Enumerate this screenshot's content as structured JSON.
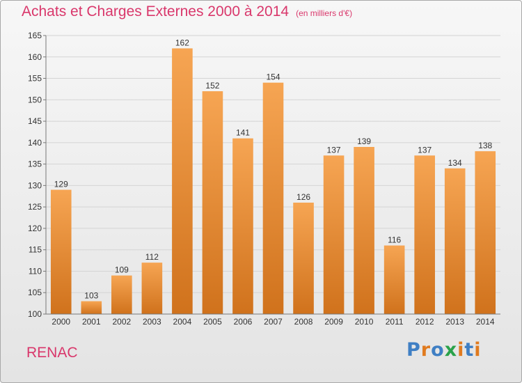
{
  "header": {
    "title": "Achats et Charges Externes 2000 à 2014",
    "unit": "(en milliers d'€)"
  },
  "footer": {
    "commune": "RENAC",
    "logo_text": "Proxiti",
    "logo_colors": [
      "#3f7fc4",
      "#e07b20",
      "#3f7fc4",
      "#2aa24a",
      "#e07b20",
      "#3f7fc4",
      "#e07b20"
    ]
  },
  "chart_data": {
    "type": "bar",
    "categories": [
      "2000",
      "2001",
      "2002",
      "2003",
      "2004",
      "2005",
      "2006",
      "2007",
      "2008",
      "2009",
      "2010",
      "2011",
      "2012",
      "2013",
      "2014"
    ],
    "values": [
      129,
      103,
      109,
      112,
      162,
      152,
      141,
      154,
      126,
      137,
      139,
      116,
      137,
      134,
      138
    ],
    "yticks": [
      100,
      105,
      110,
      115,
      120,
      125,
      130,
      135,
      140,
      145,
      150,
      155,
      160,
      165
    ],
    "ylim": [
      100,
      165
    ],
    "grid": true,
    "bar_color_top": "#f6a553",
    "bar_color_bottom": "#d0721c",
    "label_color": "#333333"
  }
}
